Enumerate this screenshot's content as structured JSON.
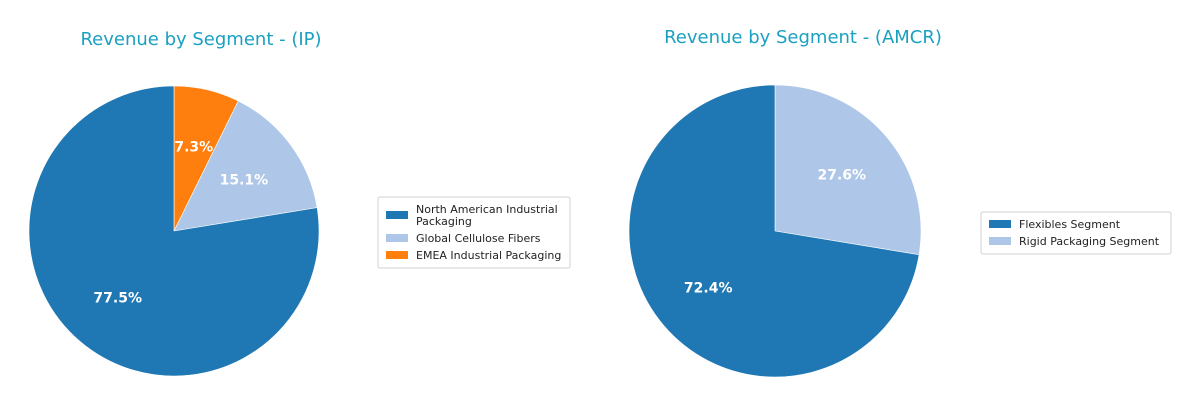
{
  "chart_data": [
    {
      "type": "pie",
      "title": "Revenue by Segment - (IP)",
      "title_color": "#1aa0c0",
      "start_angle_deg": 90,
      "direction": "clockwise",
      "legend_position": "right",
      "slices": [
        {
          "name": "EMEA Industrial Packaging",
          "legend_lines": [
            "EMEA Industrial Packaging"
          ],
          "value": 7.3,
          "label": "7.3%",
          "color": "#ff7f0e"
        },
        {
          "name": "Global Cellulose Fibers",
          "legend_lines": [
            "Global Cellulose Fibers"
          ],
          "value": 15.1,
          "label": "15.1%",
          "color": "#aec7e8"
        },
        {
          "name": "North American Industrial Packaging",
          "legend_lines": [
            "North American Industrial",
            "Packaging"
          ],
          "value": 77.5,
          "label": "77.5%",
          "color": "#1f77b4"
        }
      ],
      "legend_order": [
        "North American Industrial Packaging",
        "Global Cellulose Fibers",
        "EMEA Industrial Packaging"
      ]
    },
    {
      "type": "pie",
      "title": "Revenue by Segment - (AMCR)",
      "title_color": "#1aa0c0",
      "start_angle_deg": 90,
      "direction": "clockwise",
      "legend_position": "right",
      "slices": [
        {
          "name": "Rigid Packaging Segment",
          "legend_lines": [
            "Rigid Packaging Segment"
          ],
          "value": 27.6,
          "label": "27.6%",
          "color": "#aec7e8"
        },
        {
          "name": "Flexibles Segment",
          "legend_lines": [
            "Flexibles Segment"
          ],
          "value": 72.4,
          "label": "72.4%",
          "color": "#1f77b4"
        }
      ],
      "legend_order": [
        "Flexibles Segment",
        "Rigid Packaging Segment"
      ]
    }
  ]
}
